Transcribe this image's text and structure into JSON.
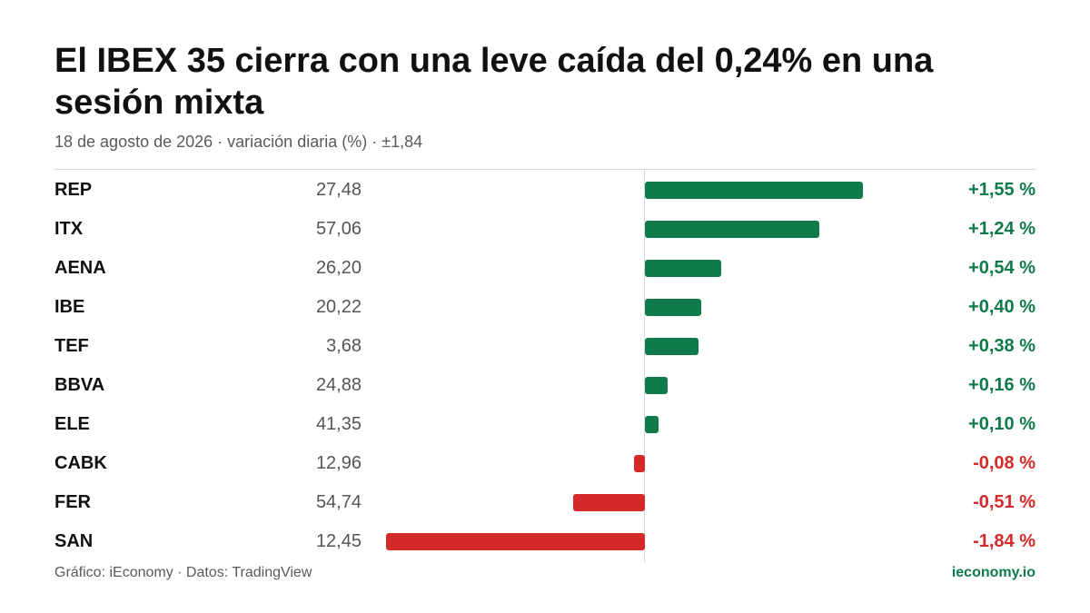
{
  "chart_data": {
    "type": "bar",
    "orientation": "horizontal",
    "title": "El IBEX 35 cierra con una leve caída del 0,24% en una sesión mixta",
    "subtitle": "18 de agosto de 2026 · variación diaria (%) · ±1,84",
    "categories": [
      "REP",
      "ITX",
      "AENA",
      "IBE",
      "TEF",
      "BBVA",
      "ELE",
      "CABK",
      "FER",
      "SAN"
    ],
    "prices": [
      "27,48",
      "57,06",
      "26,20",
      "20,22",
      "3,68",
      "24,88",
      "41,35",
      "12,96",
      "54,74",
      "12,45"
    ],
    "values": [
      1.55,
      1.24,
      0.54,
      0.4,
      0.38,
      0.16,
      0.1,
      -0.08,
      -0.51,
      -1.84
    ],
    "value_labels": [
      "+1,55 %",
      "+1,24 %",
      "+0,54 %",
      "+0,40 %",
      "+0,38 %",
      "+0,16 %",
      "+0,10 %",
      "-0,08 %",
      "-0,51 %",
      "-1,84 %"
    ],
    "xlim": [
      -1.84,
      1.84
    ],
    "grid": false,
    "colors": {
      "positive": "#0f7a4a",
      "negative": "#d42a2a"
    }
  },
  "footer": {
    "credit": "Gráfico: iEconomy · Datos: TradingView",
    "brand": "ieconomy.io",
    "brand_color": "#0f7a4a"
  }
}
